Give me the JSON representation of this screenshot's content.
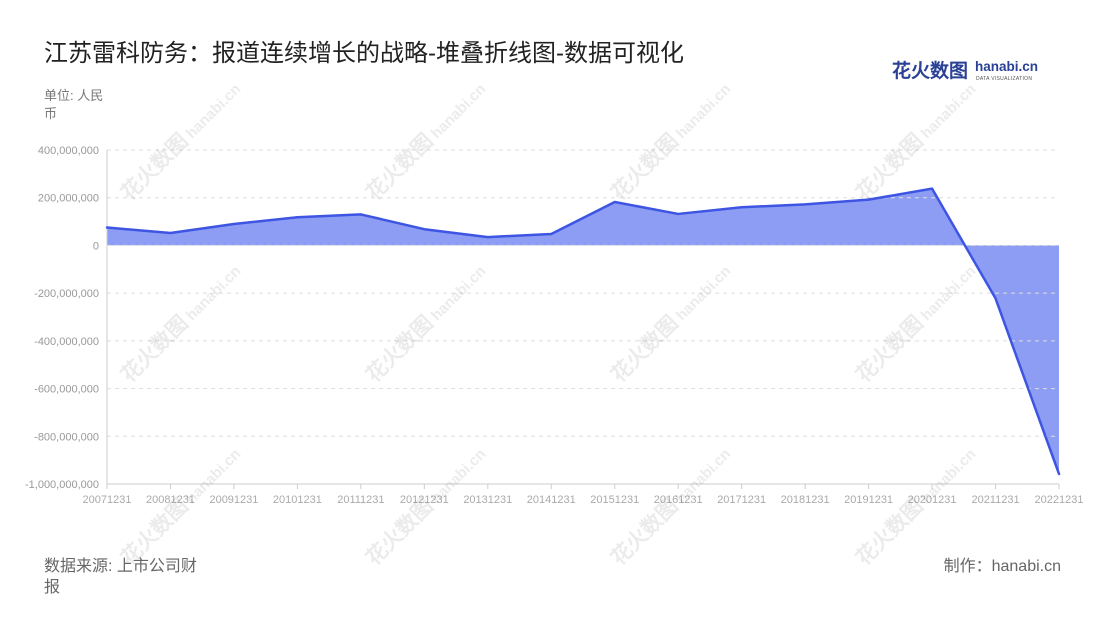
{
  "logo": {
    "cn": "花火数图",
    "en": "hanabi.cn",
    "tagline": "DATA VISUALIZATION",
    "color": "#2a4196"
  },
  "watermark": {
    "cn": "花火数图",
    "en": "hanabi.cn"
  },
  "footer": {
    "source": "数据来源: 上市公司财报",
    "credit": "制作：hanabi.cn"
  },
  "chart_data": {
    "type": "area",
    "title": "江苏雷科防务：报道连续增长的战略-堆叠折线图-数据可视化",
    "ylabel": "单位: 人民币",
    "xlabel": "",
    "categories": [
      "20071231",
      "20081231",
      "20091231",
      "20101231",
      "20111231",
      "20121231",
      "20131231",
      "20141231",
      "20151231",
      "20161231",
      "20171231",
      "20181231",
      "20191231",
      "20201231",
      "20211231",
      "20221231"
    ],
    "values": [
      75000000,
      52000000,
      90000000,
      118000000,
      130000000,
      68000000,
      35000000,
      48000000,
      182000000,
      132000000,
      160000000,
      172000000,
      192000000,
      238000000,
      -222000000,
      -958000000
    ],
    "ylim": [
      -1000000000,
      400000000
    ],
    "yticks": [
      400000000,
      200000000,
      0,
      -200000000,
      -400000000,
      -600000000,
      -800000000,
      -1000000000
    ],
    "ytick_labels": [
      "400,000,000",
      "200,000,000",
      "0",
      "-200,000,000",
      "-400,000,000",
      "-600,000,000",
      "-800,000,000",
      "-1,000,000,000"
    ],
    "grid": true,
    "colors": {
      "line": "#3d55e2",
      "fill": "#8c9df3",
      "grid": "#dedede",
      "axis": "#cccccc",
      "tick_text": "#999999",
      "xtick_text": "#aaaaaa"
    }
  }
}
